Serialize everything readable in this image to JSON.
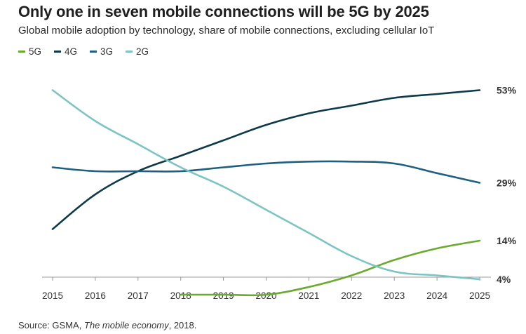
{
  "chart_data": {
    "type": "line",
    "title": "Only one in seven mobile connections will be 5G by 2025",
    "subtitle": "Global mobile adoption by technology, share of mobile connections, excluding cellular IoT",
    "x": [
      2015,
      2016,
      2017,
      2018,
      2019,
      2020,
      2021,
      2022,
      2023,
      2024,
      2025
    ],
    "tick_labels": [
      "2015",
      "2016",
      "2017",
      "2018",
      "2019",
      "2020",
      "2021",
      "2022",
      "2023",
      "2024",
      "2025"
    ],
    "ylim": [
      0,
      60
    ],
    "grid": false,
    "legend_position": "top-left",
    "series": [
      {
        "name": "5G",
        "color": "#6aaa2e",
        "values": [
          null,
          null,
          null,
          0,
          0,
          0,
          2,
          5,
          9,
          12,
          14
        ],
        "end_label": "14%"
      },
      {
        "name": "4G",
        "color": "#0d3a4b",
        "values": [
          17,
          26,
          32,
          36,
          40,
          44,
          47,
          49,
          51,
          52,
          53
        ],
        "end_label": "53%"
      },
      {
        "name": "3G",
        "color": "#1f5f80",
        "values": [
          33,
          32,
          32,
          32,
          33,
          34,
          34.5,
          34.5,
          34,
          31.5,
          29
        ],
        "end_label": "29%"
      },
      {
        "name": "2G",
        "color": "#7cc4c4",
        "values": [
          53,
          45,
          39,
          33,
          28,
          22,
          16,
          10,
          6,
          5,
          4
        ],
        "end_label": "4%"
      }
    ]
  },
  "source": {
    "prefix": "Source: GSMA, ",
    "publication": "The mobile economy",
    "suffix": ", 2018."
  }
}
